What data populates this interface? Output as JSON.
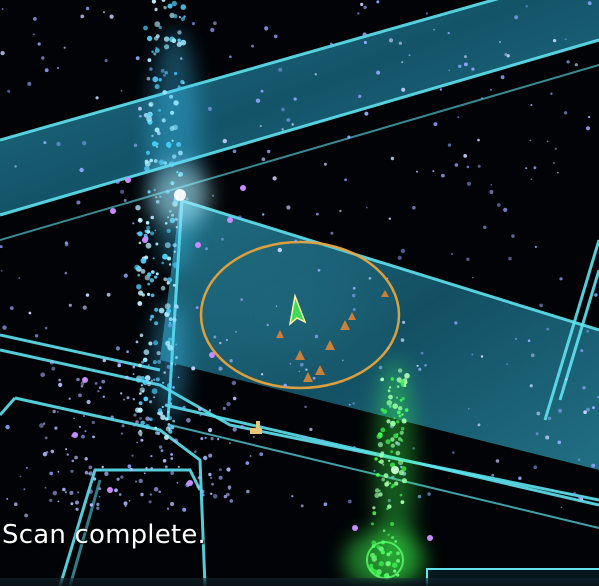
{
  "status": {
    "message": "Scan complete."
  },
  "scanner": {
    "player_marker": "player-arrow-icon"
  },
  "colors": {
    "background": "#010306",
    "road_fill": "#1d6f86",
    "road_edge": "#5fe3ef",
    "portal_glow": "#7fe6ff",
    "resistance_glow": "#3cff4f",
    "range_ring": "#e8a43c",
    "xm_particle": "#8fa8ff",
    "resonator": "#c98bff"
  }
}
